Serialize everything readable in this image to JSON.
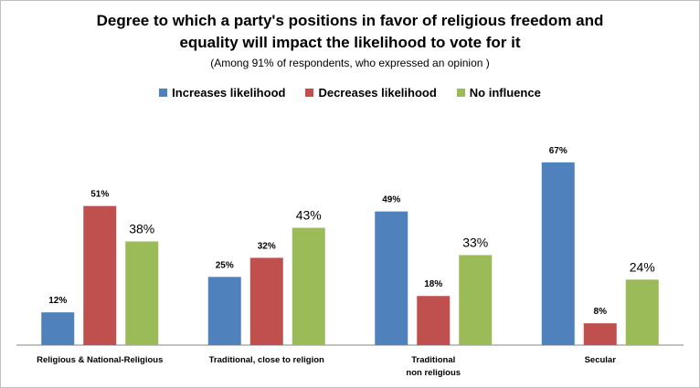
{
  "chart_data": {
    "type": "bar",
    "title_line1": "Degree to which a party's positions in favor of religious freedom and",
    "title_line2": "equality will impact the likelihood to vote for it",
    "subtitle": "(Among 91% of respondents, who expressed an opinion )",
    "categories": [
      [
        "Religious & National-Religious"
      ],
      [
        "Traditional, close to religion"
      ],
      [
        "Traditional",
        "non religious"
      ],
      [
        "Secular"
      ]
    ],
    "series": [
      {
        "name": "Increases likelihood",
        "color": "#4f81bd",
        "values": [
          12,
          25,
          49,
          67
        ],
        "labels": [
          "12%",
          "25%",
          "49%",
          "67%"
        ]
      },
      {
        "name": "Decreases likelihood",
        "color": "#c0504d",
        "values": [
          51,
          32,
          18,
          8
        ],
        "labels": [
          "51%",
          "32%",
          "18%",
          "8%"
        ]
      },
      {
        "name": "No influence",
        "color": "#9bbb59",
        "values": [
          38,
          43,
          33,
          24
        ],
        "labels": [
          "38%",
          "43%",
          "33%",
          "24%"
        ]
      }
    ],
    "ylim": [
      0,
      80
    ],
    "grid": false,
    "legend_position": "top"
  }
}
